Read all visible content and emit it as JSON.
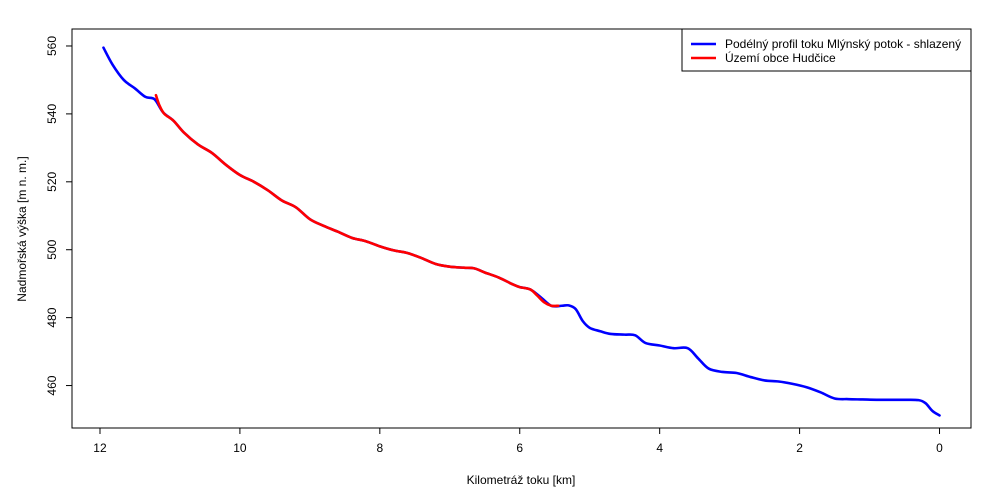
{
  "chart_data": {
    "type": "line",
    "title": "",
    "xlabel": "Kilometráž toku [km]",
    "ylabel": "Nadmořská výška [m n. m.]",
    "xlim": [
      12.4,
      -0.45
    ],
    "ylim": [
      447.5,
      565
    ],
    "x_reversed": true,
    "x_ticks": [
      12,
      10,
      8,
      6,
      4,
      2,
      0
    ],
    "y_ticks": [
      460,
      480,
      500,
      520,
      540,
      560
    ],
    "grid": false,
    "legend_position": "top-right",
    "series": [
      {
        "name": "Podélný profil toku Mlýnský potok - shlazený",
        "color": "#0000FF",
        "x": [
          11.95,
          11.82,
          11.66,
          11.5,
          11.35,
          11.22,
          11.1,
          10.95,
          10.8,
          10.6,
          10.4,
          10.2,
          10.0,
          9.8,
          9.6,
          9.4,
          9.2,
          9.0,
          8.8,
          8.6,
          8.4,
          8.2,
          8.0,
          7.8,
          7.6,
          7.4,
          7.2,
          7.0,
          6.8,
          6.65,
          6.5,
          6.3,
          6.1,
          6.0,
          5.85,
          5.7,
          5.55,
          5.4,
          5.3,
          5.2,
          5.1,
          5.0,
          4.85,
          4.7,
          4.5,
          4.35,
          4.2,
          4.0,
          3.8,
          3.6,
          3.45,
          3.3,
          3.1,
          2.9,
          2.7,
          2.5,
          2.3,
          2.1,
          1.9,
          1.7,
          1.5,
          1.3,
          1.1,
          0.9,
          0.7,
          0.5,
          0.3,
          0.2,
          0.1,
          0.0
        ],
        "y": [
          559.5,
          554.5,
          550.0,
          547.5,
          545.0,
          544.3,
          540.5,
          538.0,
          534.5,
          531.0,
          528.5,
          525.0,
          522.0,
          520.0,
          517.5,
          514.5,
          512.5,
          509.0,
          507.0,
          505.3,
          503.5,
          502.5,
          501.0,
          499.8,
          499.0,
          497.5,
          495.8,
          495.0,
          494.7,
          494.5,
          493.3,
          491.8,
          489.8,
          489.0,
          488.3,
          486.0,
          483.5,
          483.5,
          483.6,
          482.5,
          479.0,
          477.0,
          476.0,
          475.2,
          475.0,
          474.8,
          472.5,
          471.8,
          471.0,
          471.0,
          468.0,
          465.0,
          464.0,
          463.7,
          462.5,
          461.5,
          461.2,
          460.5,
          459.5,
          458.0,
          456.2,
          456.0,
          455.9,
          455.8,
          455.8,
          455.8,
          455.7,
          454.8,
          452.5,
          451.2
        ]
      },
      {
        "name": "Území obce Hudčice",
        "color": "#FF0000",
        "x": [
          11.2,
          11.15,
          11.08,
          10.95,
          10.8,
          10.6,
          10.4,
          10.2,
          10.0,
          9.8,
          9.6,
          9.4,
          9.2,
          9.0,
          8.8,
          8.6,
          8.4,
          8.2,
          8.0,
          7.8,
          7.6,
          7.4,
          7.2,
          7.0,
          6.8,
          6.65,
          6.5,
          6.3,
          6.1,
          6.0,
          5.85,
          5.75,
          5.65,
          5.55,
          5.45
        ],
        "y": [
          545.5,
          542.5,
          540.0,
          538.0,
          534.5,
          531.0,
          528.5,
          525.0,
          522.0,
          520.0,
          517.5,
          514.5,
          512.5,
          509.0,
          507.0,
          505.3,
          503.5,
          502.5,
          501.0,
          499.8,
          499.0,
          497.5,
          495.8,
          495.0,
          494.7,
          494.5,
          493.3,
          491.8,
          489.8,
          489.0,
          488.3,
          486.5,
          484.5,
          483.5,
          483.5
        ]
      }
    ]
  }
}
